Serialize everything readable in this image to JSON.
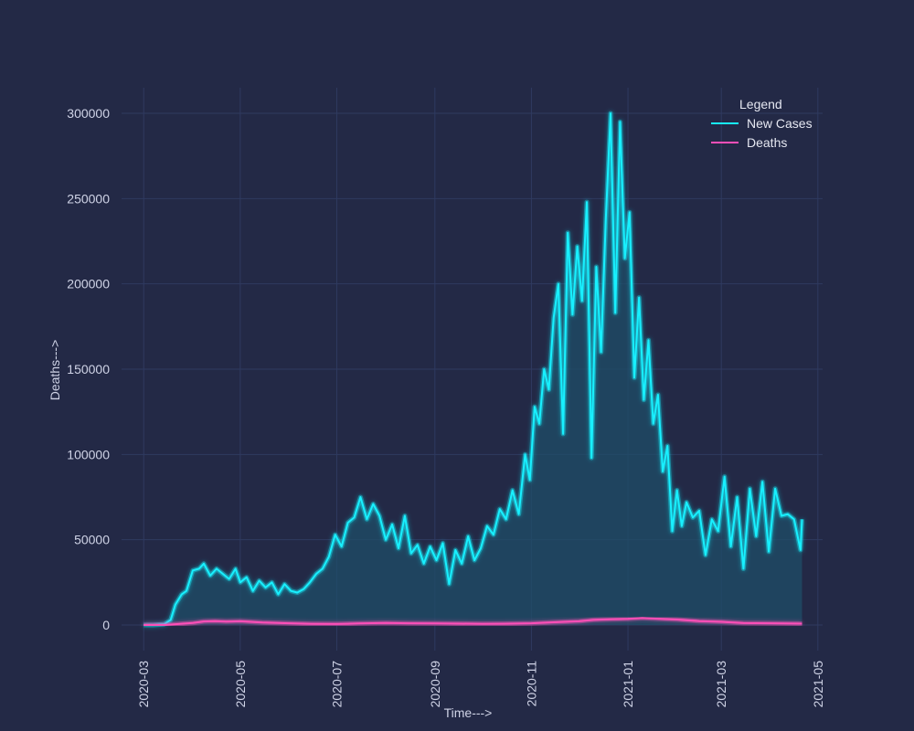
{
  "chart_data": {
    "type": "line",
    "title": "",
    "xlabel": "Time--->",
    "ylabel": "Deaths--->",
    "x_range": [
      "2020-02-16",
      "2021-05-04"
    ],
    "ylim": [
      -15000,
      315000
    ],
    "y_ticks": [
      {
        "value": 0,
        "label": "0"
      },
      {
        "value": 50000,
        "label": "50000"
      },
      {
        "value": 100000,
        "label": "100000"
      },
      {
        "value": 150000,
        "label": "150000"
      },
      {
        "value": 200000,
        "label": "200000"
      },
      {
        "value": 250000,
        "label": "250000"
      },
      {
        "value": 300000,
        "label": "300000"
      }
    ],
    "x_ticks": [
      {
        "date": "2020-03-01",
        "label": "2020-03"
      },
      {
        "date": "2020-05-01",
        "label": "2020-05"
      },
      {
        "date": "2020-07-01",
        "label": "2020-07"
      },
      {
        "date": "2020-09-01",
        "label": "2020-09"
      },
      {
        "date": "2020-11-01",
        "label": "2020-11"
      },
      {
        "date": "2021-01-01",
        "label": "2021-01"
      },
      {
        "date": "2021-03-01",
        "label": "2021-03"
      },
      {
        "date": "2021-05-01",
        "label": "2021-05"
      }
    ],
    "grid": true,
    "legend": {
      "title": "Legend",
      "position": "top-right"
    },
    "series": [
      {
        "name": "New Cases",
        "color": "#18f0ff",
        "fill": true,
        "x": [
          "2020-03-01",
          "2020-03-07",
          "2020-03-14",
          "2020-03-18",
          "2020-03-21",
          "2020-03-25",
          "2020-03-28",
          "2020-04-01",
          "2020-04-05",
          "2020-04-08",
          "2020-04-12",
          "2020-04-16",
          "2020-04-20",
          "2020-04-24",
          "2020-04-28",
          "2020-05-01",
          "2020-05-05",
          "2020-05-09",
          "2020-05-13",
          "2020-05-17",
          "2020-05-21",
          "2020-05-25",
          "2020-05-29",
          "2020-06-02",
          "2020-06-06",
          "2020-06-10",
          "2020-06-14",
          "2020-06-18",
          "2020-06-22",
          "2020-06-26",
          "2020-06-30",
          "2020-07-04",
          "2020-07-08",
          "2020-07-12",
          "2020-07-16",
          "2020-07-20",
          "2020-07-24",
          "2020-07-28",
          "2020-08-01",
          "2020-08-05",
          "2020-08-09",
          "2020-08-13",
          "2020-08-17",
          "2020-08-21",
          "2020-08-25",
          "2020-08-29",
          "2020-09-02",
          "2020-09-06",
          "2020-09-10",
          "2020-09-14",
          "2020-09-18",
          "2020-09-22",
          "2020-09-26",
          "2020-09-30",
          "2020-10-04",
          "2020-10-08",
          "2020-10-12",
          "2020-10-16",
          "2020-10-20",
          "2020-10-24",
          "2020-10-28",
          "2020-10-31",
          "2020-11-03",
          "2020-11-06",
          "2020-11-09",
          "2020-11-12",
          "2020-11-15",
          "2020-11-18",
          "2020-11-21",
          "2020-11-24",
          "2020-11-27",
          "2020-11-30",
          "2020-12-03",
          "2020-12-06",
          "2020-12-09",
          "2020-12-12",
          "2020-12-15",
          "2020-12-18",
          "2020-12-21",
          "2020-12-24",
          "2020-12-27",
          "2020-12-30",
          "2021-01-02",
          "2021-01-05",
          "2021-01-08",
          "2021-01-11",
          "2021-01-14",
          "2021-01-17",
          "2021-01-20",
          "2021-01-23",
          "2021-01-26",
          "2021-01-29",
          "2021-02-01",
          "2021-02-04",
          "2021-02-07",
          "2021-02-11",
          "2021-02-15",
          "2021-02-19",
          "2021-02-23",
          "2021-02-27",
          "2021-03-03",
          "2021-03-07",
          "2021-03-11",
          "2021-03-15",
          "2021-03-19",
          "2021-03-23",
          "2021-03-27",
          "2021-03-31",
          "2021-04-04",
          "2021-04-08",
          "2021-04-12",
          "2021-04-16",
          "2021-04-20",
          "2021-04-21"
        ],
        "y": [
          0,
          0,
          500,
          3000,
          12000,
          18000,
          20000,
          32000,
          33000,
          36000,
          29000,
          33000,
          30000,
          27000,
          33000,
          25000,
          28000,
          20000,
          26000,
          22000,
          25000,
          18000,
          24000,
          20000,
          19000,
          21000,
          25000,
          30000,
          33000,
          40000,
          53000,
          46000,
          60000,
          63000,
          75000,
          62000,
          71000,
          64000,
          50000,
          59000,
          45000,
          64000,
          42000,
          47000,
          36000,
          46000,
          38000,
          48000,
          24000,
          44000,
          36000,
          52000,
          38000,
          45000,
          58000,
          53000,
          68000,
          62000,
          79000,
          65000,
          100000,
          85000,
          128000,
          118000,
          150000,
          138000,
          180000,
          200000,
          112000,
          230000,
          182000,
          222000,
          190000,
          248000,
          98000,
          210000,
          160000,
          238000,
          300000,
          183000,
          295000,
          215000,
          242000,
          145000,
          192000,
          132000,
          167000,
          118000,
          135000,
          90000,
          105000,
          55000,
          79000,
          58000,
          72000,
          63000,
          67000,
          41000,
          62000,
          55000,
          87000,
          46000,
          75000,
          33000,
          80000,
          52000,
          84000,
          43000,
          80000,
          64000,
          65000,
          62000,
          44000,
          62000
        ],
        "y_note": "approximate"
      },
      {
        "name": "Deaths",
        "color": "#ff4fb8",
        "fill": false,
        "x": [
          "2020-03-01",
          "2020-03-15",
          "2020-04-01",
          "2020-04-08",
          "2020-04-15",
          "2020-04-22",
          "2020-05-01",
          "2020-05-15",
          "2020-06-01",
          "2020-06-15",
          "2020-07-01",
          "2020-07-15",
          "2020-08-01",
          "2020-08-15",
          "2020-09-01",
          "2020-09-15",
          "2020-10-01",
          "2020-10-15",
          "2020-11-01",
          "2020-11-15",
          "2020-12-01",
          "2020-12-10",
          "2020-12-20",
          "2021-01-01",
          "2021-01-10",
          "2021-01-20",
          "2021-02-01",
          "2021-02-15",
          "2021-03-01",
          "2021-03-15",
          "2021-04-01",
          "2021-04-21"
        ],
        "y": [
          0,
          50,
          1200,
          2100,
          2300,
          2000,
          2200,
          1500,
          1000,
          700,
          600,
          900,
          1200,
          1000,
          900,
          800,
          700,
          750,
          1000,
          1600,
          2200,
          3000,
          3300,
          3600,
          4100,
          3700,
          3200,
          2300,
          1900,
          1100,
          1000,
          800
        ]
      }
    ]
  }
}
